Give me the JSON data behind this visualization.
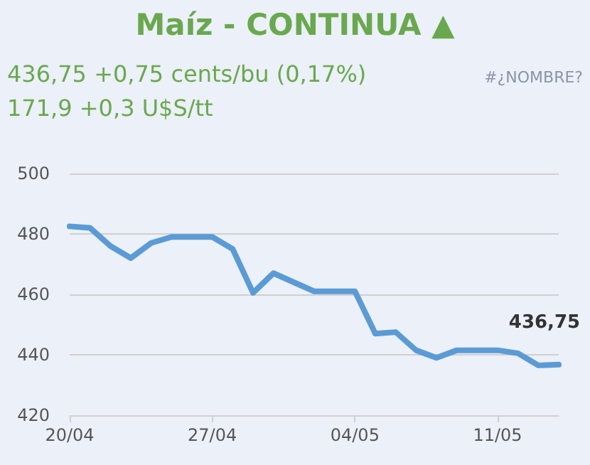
{
  "chart_data": {
    "type": "line",
    "title": "Maíz - CONTINUA ▲",
    "subtitle": "436,75 +0,75 cents/bu (0,17%)",
    "annotations": [
      "171,9 +0,3 U$S/tt",
      "#¿NOMBRE?",
      {
        "text": "436,75",
        "x": "--05-14",
        "y": 436.75
      }
    ],
    "x": [
      "--04-20",
      "--04-21",
      "--04-22",
      "--04-23",
      "--04-24",
      "--04-25",
      "--04-26",
      "--04-27",
      "--04-28",
      "--04-29",
      "--04-30",
      "--05-01",
      "--05-02",
      "--05-03",
      "--05-04",
      "--05-05",
      "--05-06",
      "--05-07",
      "--05-08",
      "--05-09",
      "--05-10",
      "--05-11",
      "--05-12",
      "--05-13",
      "--05-14"
    ],
    "series": [
      {
        "color": "#5b9bd5",
        "values": [
          482.5,
          482,
          476,
          472,
          477,
          479,
          479,
          479,
          475,
          460.5,
          467,
          464,
          461,
          461,
          461,
          447,
          447.5,
          441.5,
          439,
          441.5,
          441.5,
          441.5,
          440.5,
          436.5,
          436.75
        ]
      }
    ],
    "xlim": [
      "--04-20",
      "--05-14"
    ],
    "xticks": [
      {
        "value": "--04-20",
        "label": "20/04"
      },
      {
        "value": "--04-27",
        "label": "27/04"
      },
      {
        "value": "--05-04",
        "label": "04/05"
      },
      {
        "value": "--05-11",
        "label": "11/05"
      }
    ],
    "ylim": [
      420,
      500
    ],
    "yticks": [
      420,
      440,
      460,
      480,
      500
    ],
    "grid": "y",
    "marker": "none",
    "line_style": "solid"
  }
}
